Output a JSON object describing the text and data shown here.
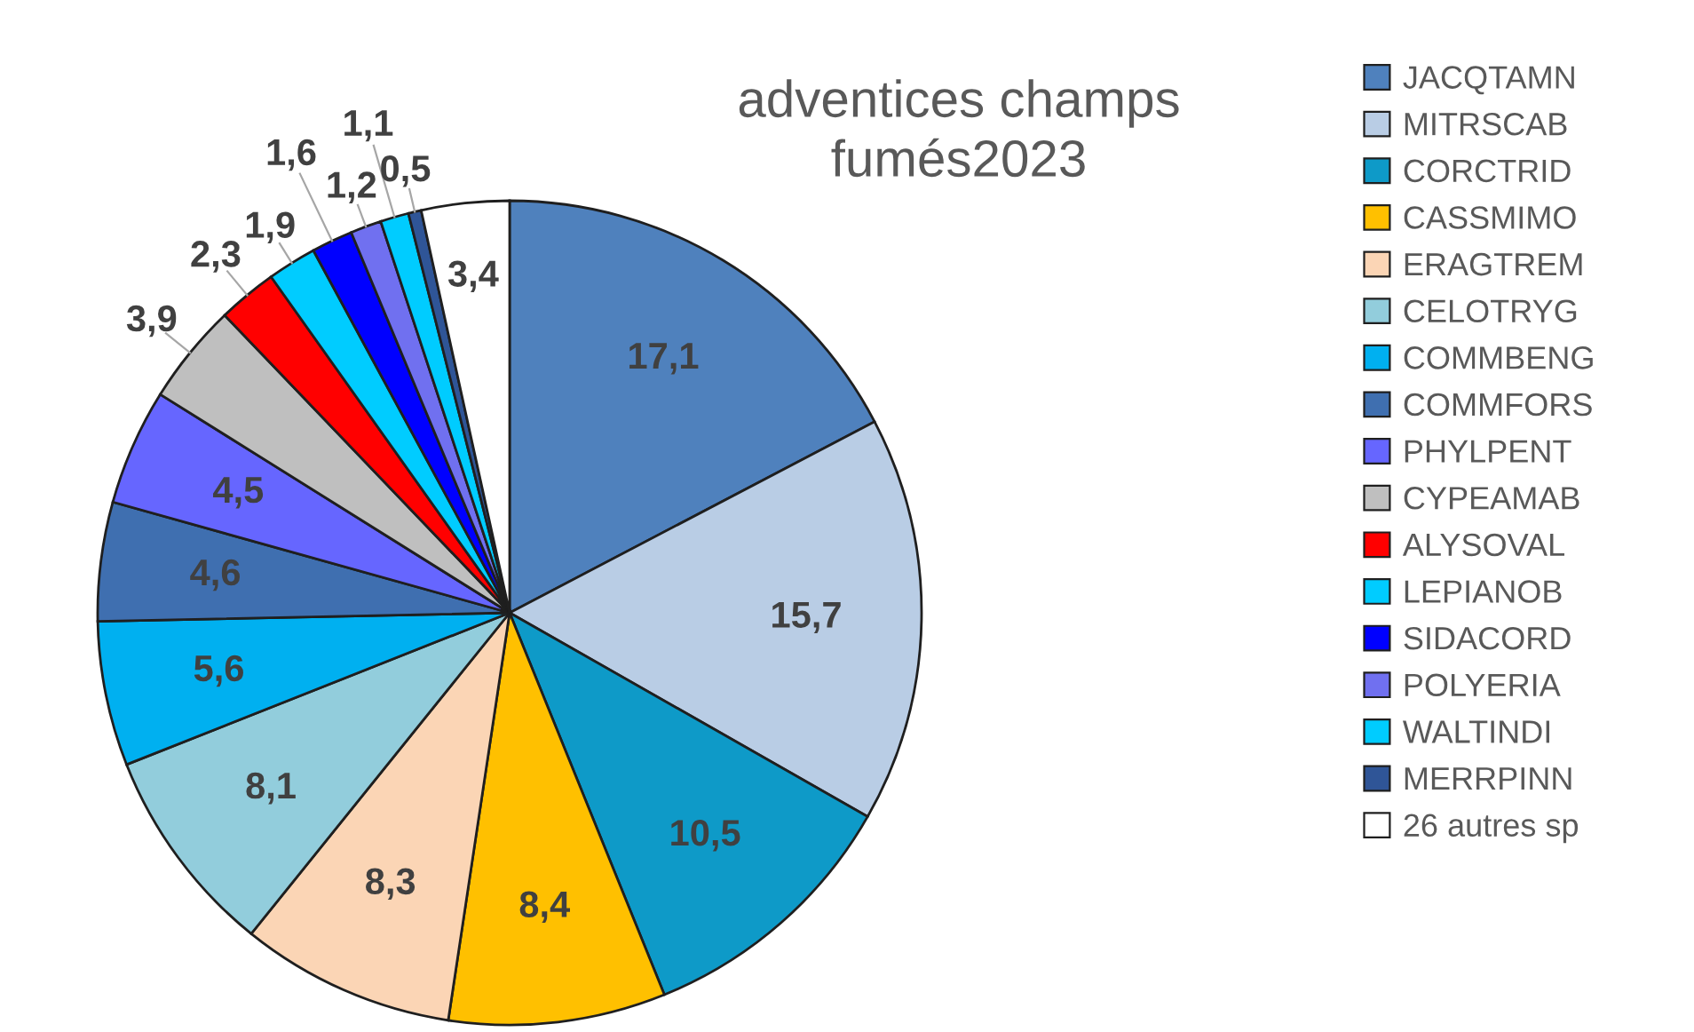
{
  "chart_data": {
    "type": "pie",
    "title": "adventices champs\nfumés2023",
    "categories": [
      "JACQTAMN",
      "MITRSCAB",
      "CORCTRID",
      "CASSMIMO",
      "ERAGTREM",
      "CELOTRYG",
      "COMMBENG",
      "COMMFORS",
      "PHYLPENT",
      "CYPEAMAB",
      "ALYSOVAL",
      "LEPIANOB",
      "SIDACORD",
      "POLYERIA",
      "WALTINDI",
      "MERRPINN",
      "26 autres sp"
    ],
    "values": [
      17.1,
      15.7,
      10.5,
      8.4,
      8.3,
      8.1,
      5.6,
      4.6,
      4.5,
      3.9,
      2.3,
      1.9,
      1.6,
      1.2,
      1.1,
      0.5,
      3.4
    ],
    "value_labels": [
      "17,1",
      "15,7",
      "10,5",
      "8,4",
      "8,3",
      "8,1",
      "5,6",
      "4,6",
      "4,5",
      "3,9",
      "2,3",
      "1,9",
      "1,6",
      "1,2",
      "1,1",
      "0,5",
      "3,4"
    ],
    "colors": [
      "#4f81bd",
      "#b9cde5",
      "#0e9ac8",
      "#ffc000",
      "#fbd5b5",
      "#92cddc",
      "#00b0f0",
      "#3f6fb0",
      "#6666ff",
      "#bfbfbf",
      "#ff0000",
      "#00ccff",
      "#0000ff",
      "#7070f0",
      "#00ccff",
      "#2f5597",
      "#ffffff"
    ],
    "legend": "right"
  }
}
